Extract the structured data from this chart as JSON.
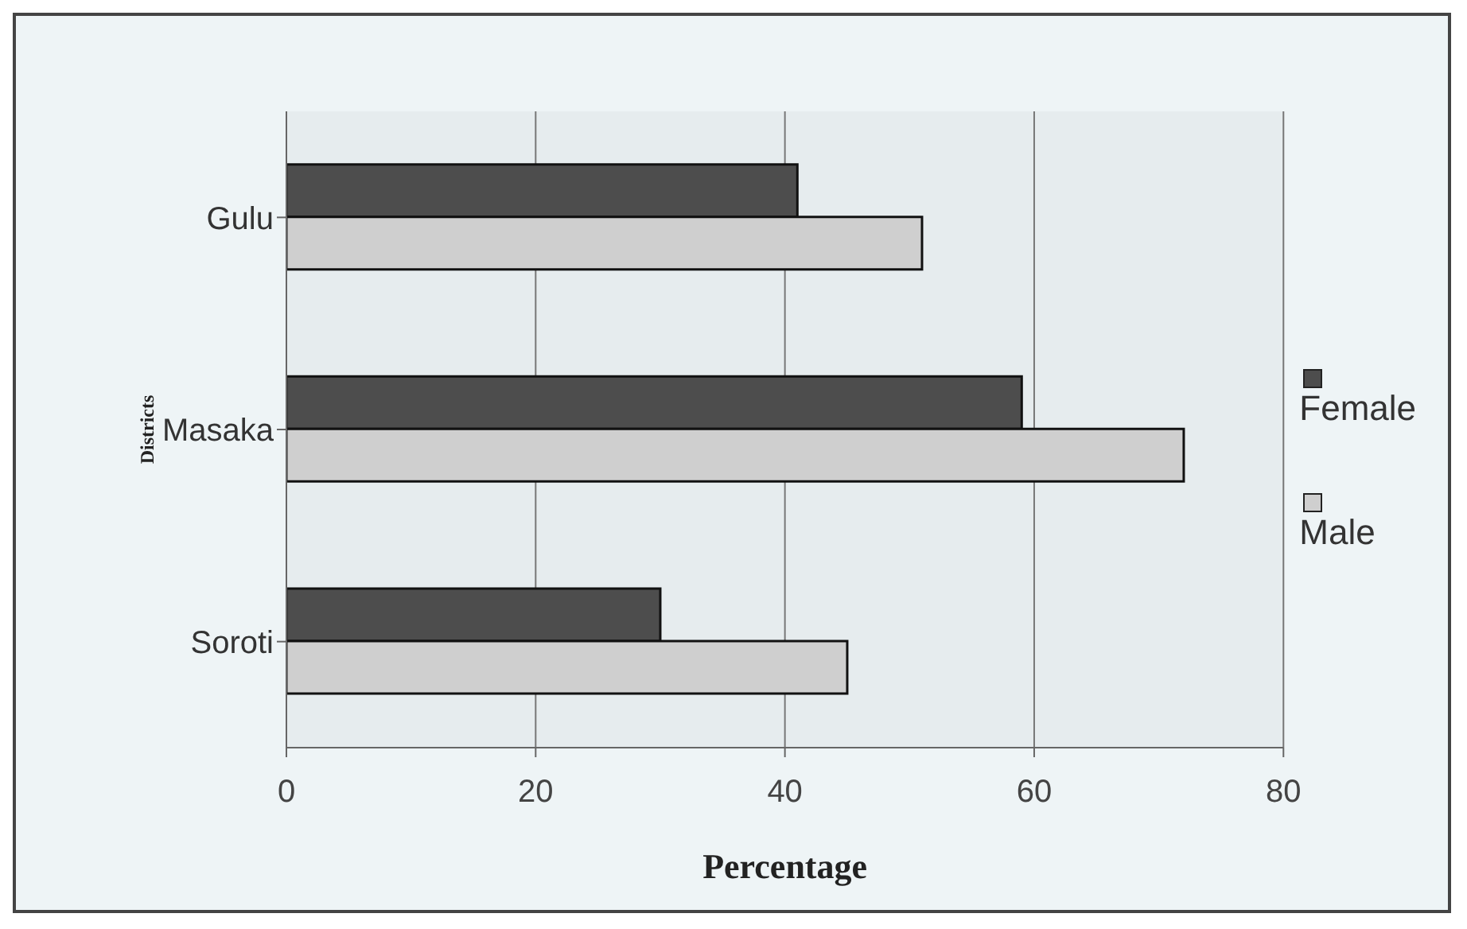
{
  "chart_data": {
    "type": "bar",
    "orientation": "horizontal",
    "xlabel": "Percentage",
    "ylabel": "Districts",
    "categories": [
      "Gulu",
      "Masaka",
      "Soroti"
    ],
    "series": [
      {
        "name": "Female",
        "color": "#4d4d4d",
        "values": [
          41,
          59,
          30
        ]
      },
      {
        "name": "Male",
        "color": "#cfcfcf",
        "values": [
          51,
          72,
          45
        ]
      }
    ],
    "xlim": [
      0,
      80
    ],
    "xticks": [
      0,
      20,
      40,
      60,
      80
    ],
    "grid": "x",
    "legend": "right"
  }
}
